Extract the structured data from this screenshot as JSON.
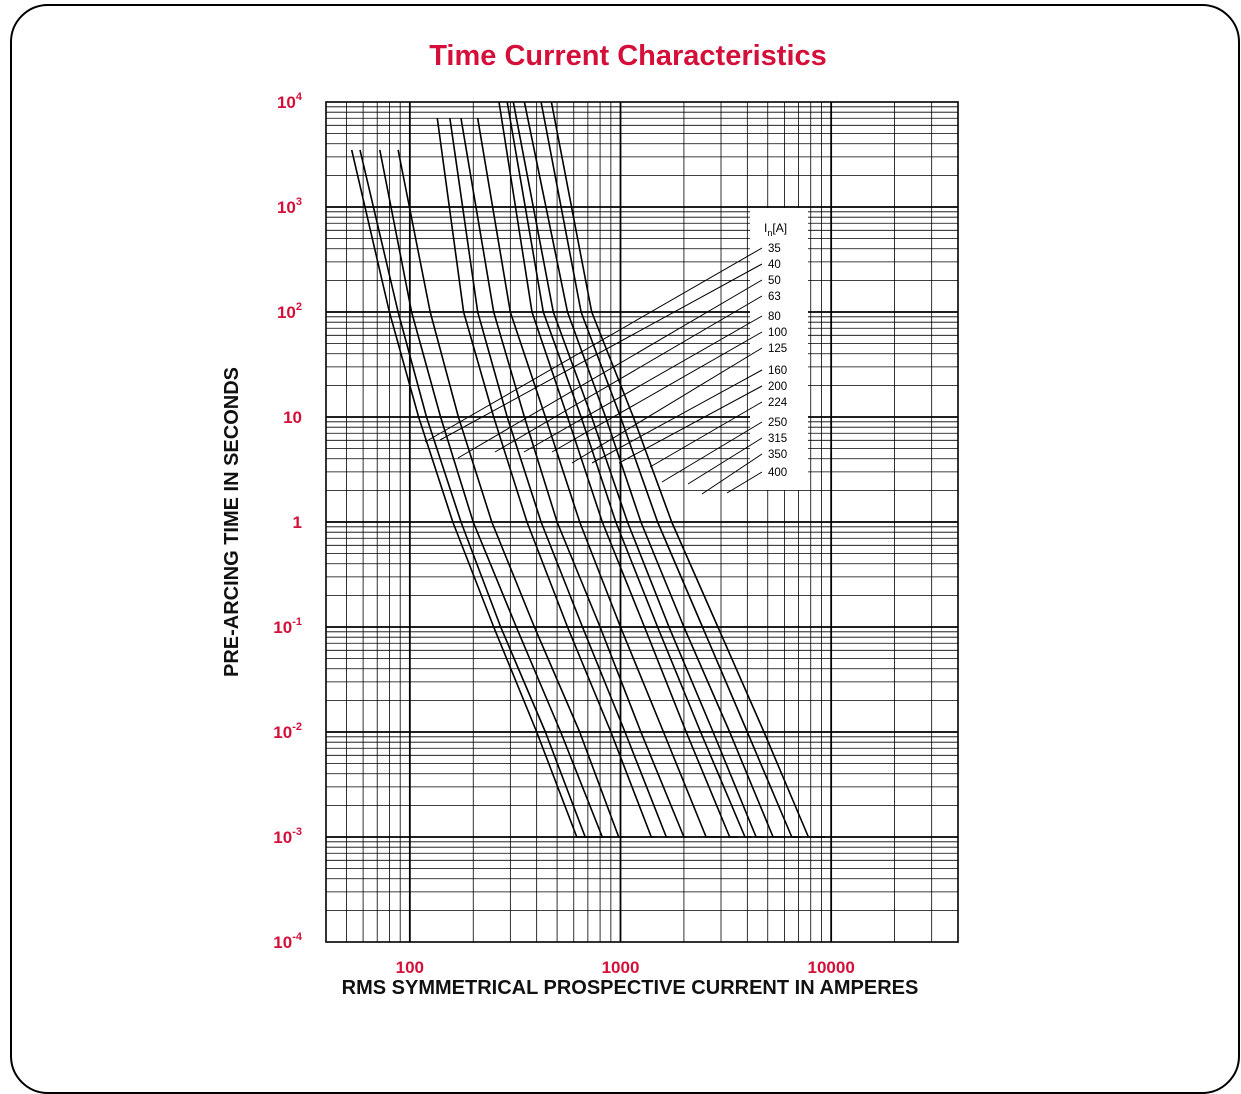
{
  "chart_data": {
    "type": "line",
    "title": "Time Current Characteristics",
    "xlabel": "RMS SYMMETRICAL PROSPECTIVE CURRENT IN AMPERES",
    "ylabel": "PRE-ARCING TIME IN SECONDS",
    "x_scale": "log",
    "y_scale": "log",
    "xlim": [
      40,
      40000
    ],
    "ylim": [
      0.0001,
      10000
    ],
    "grid": true,
    "x_ticks": [
      {
        "value": 100,
        "label": "100"
      },
      {
        "value": 1000,
        "label": "1000"
      },
      {
        "value": 10000,
        "label": "10000"
      }
    ],
    "y_ticks": [
      {
        "value": 10000,
        "base": "10",
        "exp": "4"
      },
      {
        "value": 1000,
        "base": "10",
        "exp": "3"
      },
      {
        "value": 100,
        "base": "10",
        "exp": "2"
      },
      {
        "value": 10,
        "base": "10",
        "exp": ""
      },
      {
        "value": 1,
        "base": "1",
        "exp": ""
      },
      {
        "value": 0.1,
        "base": "10",
        "exp": "-1"
      },
      {
        "value": 0.01,
        "base": "10",
        "exp": "-2"
      },
      {
        "value": 0.001,
        "base": "10",
        "exp": "-3"
      },
      {
        "value": 0.0001,
        "base": "10",
        "exp": "-4"
      }
    ],
    "legend_title": {
      "main": "I",
      "sub": "n",
      "unit": "[A]"
    },
    "legend_position": "right",
    "series": [
      {
        "name": "35",
        "x": [
          53,
          80,
          110,
          160,
          250,
          400,
          620,
          720
        ],
        "y": [
          3500,
          100,
          10,
          1,
          0.1,
          0.01,
          0.001,
          0.001
        ]
      },
      {
        "name": "40",
        "x": [
          58,
          88,
          120,
          175,
          270,
          440,
          680,
          820
        ],
        "y": [
          3500,
          100,
          10,
          1,
          0.1,
          0.01,
          0.001,
          0.001
        ]
      },
      {
        "name": "50",
        "x": [
          72,
          102,
          140,
          200,
          320,
          520,
          820,
          900
        ],
        "y": [
          3500,
          100,
          10,
          1,
          0.1,
          0.01,
          0.001,
          0.001
        ]
      },
      {
        "name": "63",
        "x": [
          88,
          125,
          170,
          245,
          390,
          640,
          980,
          1030
        ],
        "y": [
          3500,
          100,
          10,
          1,
          0.1,
          0.01,
          0.001,
          0.001
        ]
      },
      {
        "name": "80",
        "x": [
          135,
          180,
          250,
          360,
          560,
          900,
          1400,
          1450
        ],
        "y": [
          7000,
          100,
          10,
          1,
          0.1,
          0.01,
          0.001,
          0.001
        ]
      },
      {
        "name": "100",
        "x": [
          155,
          210,
          290,
          420,
          660,
          1050,
          1650,
          1700
        ],
        "y": [
          7000,
          100,
          10,
          1,
          0.1,
          0.01,
          0.001,
          0.001
        ]
      },
      {
        "name": "125",
        "x": [
          175,
          250,
          350,
          500,
          800,
          1250,
          2000,
          2050
        ],
        "y": [
          7000,
          100,
          10,
          1,
          0.1,
          0.01,
          0.001,
          0.001
        ]
      },
      {
        "name": "160",
        "x": [
          210,
          300,
          440,
          640,
          1000,
          1600,
          2550,
          2950
        ],
        "y": [
          7000,
          100,
          10,
          1,
          0.1,
          0.01,
          0.001,
          0.001
        ]
      },
      {
        "name": "200",
        "x": [
          265,
          380,
          560,
          820,
          1300,
          2050,
          3300,
          3600
        ],
        "y": [
          10000,
          100,
          10,
          1,
          0.1,
          0.01,
          0.001,
          0.001
        ]
      },
      {
        "name": "224",
        "x": [
          290,
          430,
          650,
          950,
          1500,
          2400,
          3900,
          4200
        ],
        "y": [
          10000,
          100,
          10,
          1,
          0.1,
          0.01,
          0.001,
          0.001
        ]
      },
      {
        "name": "250",
        "x": [
          310,
          480,
          730,
          1080,
          1700,
          2750,
          4400,
          4800
        ],
        "y": [
          10000,
          100,
          10,
          1,
          0.1,
          0.01,
          0.001,
          0.001
        ]
      },
      {
        "name": "315",
        "x": [
          350,
          560,
          850,
          1250,
          2000,
          3300,
          5300,
          6100
        ],
        "y": [
          10000,
          100,
          10,
          1,
          0.1,
          0.01,
          0.001,
          0.001
        ]
      },
      {
        "name": "350",
        "x": [
          420,
          650,
          1000,
          1500,
          2450,
          4000,
          6500,
          7200
        ],
        "y": [
          10000,
          100,
          10,
          1,
          0.1,
          0.01,
          0.001,
          0.001
        ]
      },
      {
        "name": "400",
        "x": [
          470,
          730,
          1150,
          1750,
          2900,
          4800,
          7800,
          9400
        ],
        "y": [
          10000,
          100,
          10,
          1,
          0.1,
          0.01,
          0.001,
          0.001
        ]
      }
    ]
  },
  "colors": {
    "title": "#d4103a",
    "tick_labels": "#d4103a",
    "axis_labels": "#111111",
    "lines": "#000000",
    "background": "#ffffff"
  }
}
